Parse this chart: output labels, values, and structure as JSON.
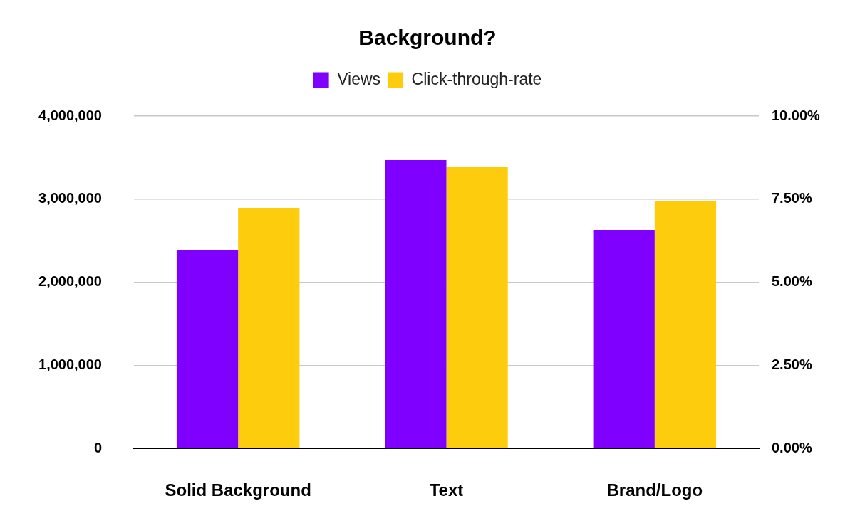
{
  "chart_data": {
    "type": "bar",
    "title": "Background?",
    "categories": [
      "Solid Background",
      "Text",
      "Brand/Logo"
    ],
    "series": [
      {
        "name": "Views",
        "color": "#7f00ff",
        "values": [
          2390000,
          3470000,
          2630000
        ]
      },
      {
        "name": "Click-through-rate",
        "color": "#fdcc0d",
        "values": [
          7.22,
          8.47,
          7.44
        ],
        "axis": "y2"
      }
    ],
    "ylim": [
      0,
      4000000
    ],
    "yticks": [
      0,
      {
        "value": 1000000,
        "label": "1,000,000"
      },
      {
        "value": 2000000,
        "label": "2,000,000"
      },
      {
        "value": 3000000,
        "label": "3,000,000"
      },
      {
        "value": 4000000,
        "label": "4,000,000"
      }
    ],
    "y2lim": [
      0,
      10
    ],
    "y2ticks": [
      {
        "value": 0,
        "label": "0.00%"
      },
      {
        "value": 2.5,
        "label": "2.50%"
      },
      {
        "value": 5,
        "label": "5.00%"
      },
      {
        "value": 7.5,
        "label": "7.50%"
      },
      {
        "value": 10,
        "label": "10.00%"
      }
    ],
    "grid": "y",
    "legend": "top"
  }
}
